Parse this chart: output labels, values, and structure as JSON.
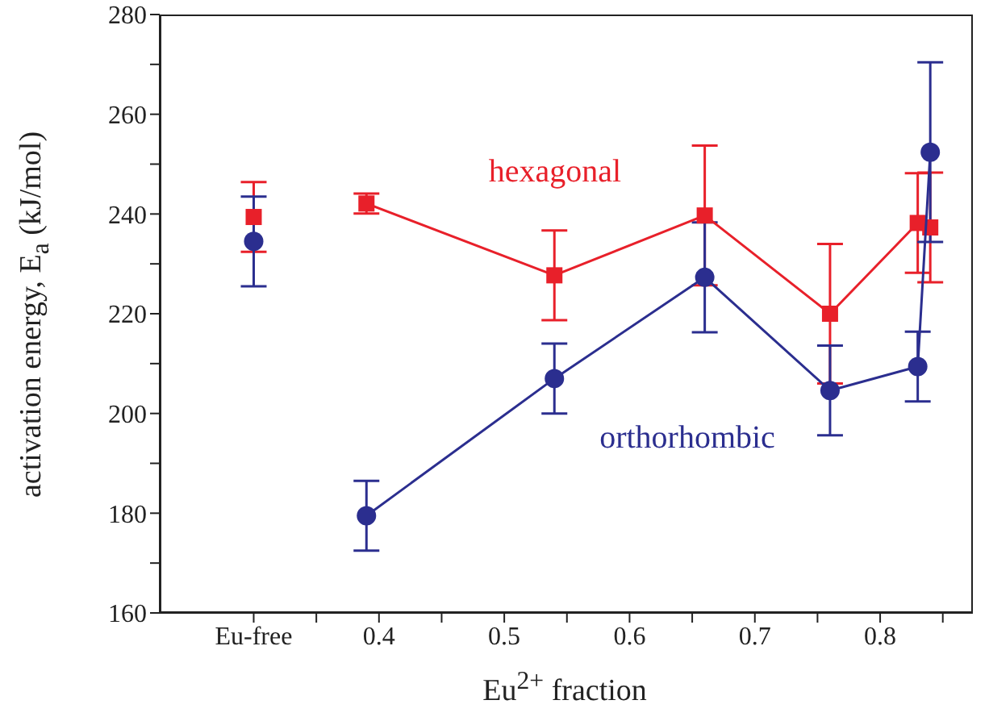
{
  "chart_data": {
    "type": "line",
    "xlabel": "Eu$^{2+}$ fraction",
    "ylabel": "activation energy, E$_{a}$  (kJ/mol)",
    "xlim": [
      0.225,
      0.874
    ],
    "xticks": [
      {
        "value": 0.3,
        "label": "Eu-free"
      },
      {
        "value": 0.35,
        "label": null
      },
      0.4,
      {
        "value": 0.45,
        "label": null
      },
      0.5,
      {
        "value": 0.55,
        "label": null
      },
      0.6,
      {
        "value": 0.65,
        "label": null
      },
      0.7,
      {
        "value": 0.75,
        "label": null
      },
      0.8,
      {
        "value": 0.85,
        "label": null
      }
    ],
    "ylim": [
      160,
      280
    ],
    "yticks": [
      160,
      {
        "value": 170,
        "label": null
      },
      180,
      {
        "value": 190,
        "label": null
      },
      200,
      {
        "value": 210,
        "label": null
      },
      220,
      {
        "value": 230,
        "label": null
      },
      240,
      {
        "value": 250,
        "label": null
      },
      260,
      {
        "value": 270,
        "label": null
      },
      280
    ],
    "series": [
      {
        "color": "#e8202a",
        "marker": "square",
        "x": [
          0.3
        ],
        "values": [
          239.4
        ],
        "errors": [
          7
        ]
      },
      {
        "color": "#2b2e8f",
        "marker": "circle",
        "x": [
          0.3
        ],
        "values": [
          234.5
        ],
        "errors": [
          9
        ]
      },
      {
        "name": "hexagonal",
        "color": "#e8202a",
        "marker": "square",
        "x": [
          0.39,
          0.54,
          0.66,
          0.76,
          0.83,
          0.84
        ],
        "values": [
          242.1,
          227.7,
          239.7,
          220,
          238.2,
          237.3
        ],
        "errors": [
          2,
          9,
          14,
          14,
          10,
          11
        ]
      },
      {
        "name": "orthorhombic",
        "color": "#2b2e8f",
        "marker": "circle",
        "x": [
          0.39,
          0.54,
          0.66,
          0.76,
          0.83,
          0.84
        ],
        "values": [
          179.5,
          207,
          227.3,
          204.6,
          209.4,
          252.4
        ],
        "errors": [
          7,
          7,
          11,
          9,
          7,
          18
        ]
      }
    ]
  }
}
